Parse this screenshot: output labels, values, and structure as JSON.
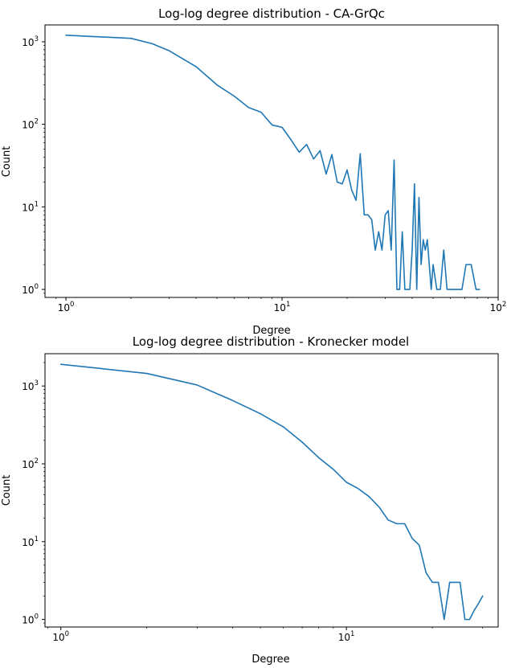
{
  "chart_data": [
    {
      "type": "line",
      "title": "Log-log degree distribution - CA-GrQc",
      "xlabel": "Degree",
      "ylabel": "Count",
      "xscale": "log",
      "yscale": "log",
      "xlim": [
        0.8,
        100
      ],
      "ylim": [
        0.8,
        1600
      ],
      "x_ticks": [
        {
          "value": 1,
          "base": "10",
          "exp": "0"
        },
        {
          "value": 10,
          "base": "10",
          "exp": "1"
        },
        {
          "value": 100,
          "base": "10",
          "exp": "2"
        }
      ],
      "y_ticks": [
        {
          "value": 1,
          "base": "10",
          "exp": "0"
        },
        {
          "value": 10,
          "base": "10",
          "exp": "1"
        },
        {
          "value": 100,
          "base": "10",
          "exp": "2"
        },
        {
          "value": 1000,
          "base": "10",
          "exp": "3"
        }
      ],
      "grid": false,
      "color": "#1f77b4",
      "series": [
        {
          "x": [
            1,
            2,
            2.5,
            3,
            4,
            5,
            6,
            7,
            8,
            9,
            10,
            11,
            12,
            13,
            14,
            15,
            16,
            17,
            18,
            19,
            20,
            21,
            22,
            23,
            24,
            25,
            26,
            27,
            28,
            29,
            30,
            31,
            32,
            33,
            34,
            35,
            36,
            37,
            38,
            39,
            40,
            41,
            42,
            43,
            44,
            45,
            46,
            47,
            48,
            49,
            50,
            52,
            54,
            56,
            58,
            60,
            62,
            65,
            68,
            71,
            75,
            79,
            82
          ],
          "y": [
            1200,
            1100,
            950,
            780,
            500,
            300,
            220,
            160,
            140,
            98,
            92,
            65,
            46,
            57,
            38,
            48,
            25,
            43,
            20,
            19,
            28,
            16,
            12,
            44,
            8,
            8,
            7,
            3,
            5,
            3,
            8,
            9,
            3,
            37,
            1,
            1,
            5,
            1,
            1,
            1,
            3,
            19,
            1,
            13,
            2,
            4,
            3,
            4,
            2,
            1,
            2,
            1,
            1,
            3,
            1,
            1,
            1,
            1,
            1,
            2,
            2,
            1,
            1
          ]
        }
      ]
    },
    {
      "type": "line",
      "title": "Log-log degree distribution - Kronecker model",
      "xlabel": "Degree",
      "ylabel": "Count",
      "xscale": "log",
      "yscale": "log",
      "xlim": [
        0.88,
        34
      ],
      "ylim": [
        0.8,
        2600
      ],
      "x_ticks": [
        {
          "value": 1,
          "base": "10",
          "exp": "0"
        },
        {
          "value": 10,
          "base": "10",
          "exp": "1"
        }
      ],
      "y_ticks": [
        {
          "value": 1,
          "base": "10",
          "exp": "0"
        },
        {
          "value": 10,
          "base": "10",
          "exp": "1"
        },
        {
          "value": 100,
          "base": "10",
          "exp": "2"
        },
        {
          "value": 1000,
          "base": "10",
          "exp": "3"
        }
      ],
      "grid": false,
      "color": "#1f77b4",
      "series": [
        {
          "x": [
            1,
            2,
            3,
            4,
            5,
            6,
            7,
            8,
            9,
            10,
            11,
            12,
            13,
            14,
            15,
            16,
            17,
            18,
            19,
            20,
            21,
            22,
            23,
            24,
            25,
            26,
            27,
            28,
            29,
            30
          ],
          "y": [
            1900,
            1450,
            1030,
            650,
            440,
            300,
            190,
            120,
            85,
            58,
            48,
            38,
            28,
            19,
            17,
            17,
            11,
            9,
            4,
            3,
            3,
            1,
            3,
            3,
            3,
            1,
            1,
            1.3,
            1.6,
            2
          ]
        }
      ]
    }
  ]
}
